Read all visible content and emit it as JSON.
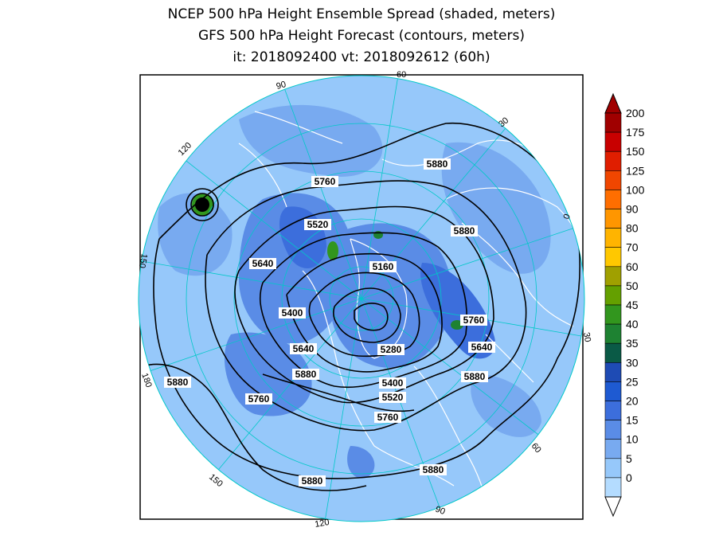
{
  "title": {
    "line1": "NCEP 500 hPa Height Ensemble Spread (shaded, meters)",
    "line2": "GFS 500 hPa Height Forecast (contours, meters)",
    "line3": "it: 2018092400      vt: 2018092612 (60h)"
  },
  "contour_labels": [
    {
      "text": "5760",
      "id": "c1"
    },
    {
      "text": "5520",
      "id": "c2"
    },
    {
      "text": "5640",
      "id": "c3"
    },
    {
      "text": "5160",
      "id": "c4"
    },
    {
      "text": "5880",
      "id": "c5"
    },
    {
      "text": "5880",
      "id": "c6"
    },
    {
      "text": "5400",
      "id": "c7"
    },
    {
      "text": "5640",
      "id": "c8"
    },
    {
      "text": "5280",
      "id": "c9"
    },
    {
      "text": "5760",
      "id": "c10"
    },
    {
      "text": "5640",
      "id": "c11"
    },
    {
      "text": "5880",
      "id": "c12"
    },
    {
      "text": "5400",
      "id": "c13"
    },
    {
      "text": "5520",
      "id": "c14"
    },
    {
      "text": "5760",
      "id": "c15"
    },
    {
      "text": "5880",
      "id": "c16"
    },
    {
      "text": "5760",
      "id": "c17"
    },
    {
      "text": "5880",
      "id": "c18"
    },
    {
      "text": "5880",
      "id": "c19"
    },
    {
      "text": "5880",
      "id": "c20"
    }
  ],
  "longitude_labels": [
    "60",
    "30",
    "0",
    "30",
    "60",
    "90",
    "120",
    "150",
    "180",
    "150",
    "120",
    "90"
  ],
  "colorbar": {
    "labels": [
      "200",
      "175",
      "150",
      "125",
      "100",
      "90",
      "80",
      "70",
      "60",
      "50",
      "45",
      "40",
      "35",
      "30",
      "25",
      "20",
      "15",
      "10",
      "5",
      "0"
    ],
    "colors": [
      "#a00000",
      "#c80000",
      "#e01e00",
      "#f04600",
      "#ff6e00",
      "#ff9600",
      "#ffb400",
      "#ffc800",
      "#a0a000",
      "#64a000",
      "#32961e",
      "#1e8232",
      "#0a5a46",
      "#1e4bb4",
      "#1e5ad2",
      "#3c6edc",
      "#5a8ce6",
      "#78aaf0",
      "#96c8fa",
      "#b4dcff"
    ]
  },
  "colors": {
    "background_spread": "#96c8fa",
    "low_spread": "#78aaf0",
    "mid_spread": "#5a8ce6",
    "high_spread": "#3c6edc",
    "coastline": "#ffffff",
    "gridline": "#00c8c8",
    "contour": "#000000"
  }
}
